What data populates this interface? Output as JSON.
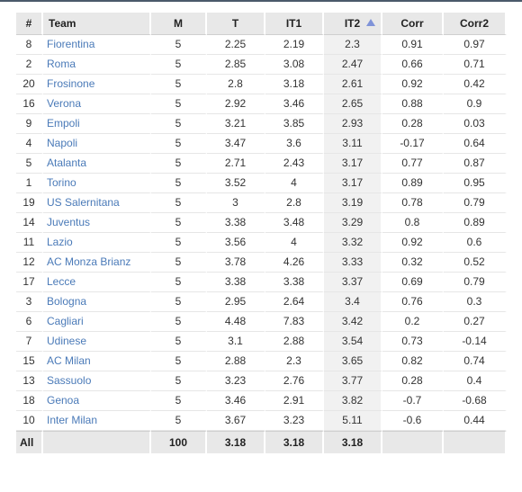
{
  "table": {
    "columns": [
      {
        "key": "rank",
        "label": "#"
      },
      {
        "key": "team",
        "label": "Team"
      },
      {
        "key": "m",
        "label": "M"
      },
      {
        "key": "t",
        "label": "T"
      },
      {
        "key": "it1",
        "label": "IT1"
      },
      {
        "key": "it2",
        "label": "IT2"
      },
      {
        "key": "corr",
        "label": "Corr"
      },
      {
        "key": "corr2",
        "label": "Corr2"
      }
    ],
    "sorted_column": "IT2",
    "sort_direction": "ascending",
    "sort_icon": "sort-ascending-icon",
    "rows": [
      {
        "rank": "8",
        "team": "Fiorentina",
        "m": "5",
        "t": "2.25",
        "it1": "2.19",
        "it2": "2.3",
        "corr": "0.91",
        "corr2": "0.97"
      },
      {
        "rank": "2",
        "team": "Roma",
        "m": "5",
        "t": "2.85",
        "it1": "3.08",
        "it2": "2.47",
        "corr": "0.66",
        "corr2": "0.71"
      },
      {
        "rank": "20",
        "team": "Frosinone",
        "m": "5",
        "t": "2.8",
        "it1": "3.18",
        "it2": "2.61",
        "corr": "0.92",
        "corr2": "0.42"
      },
      {
        "rank": "16",
        "team": "Verona",
        "m": "5",
        "t": "2.92",
        "it1": "3.46",
        "it2": "2.65",
        "corr": "0.88",
        "corr2": "0.9"
      },
      {
        "rank": "9",
        "team": "Empoli",
        "m": "5",
        "t": "3.21",
        "it1": "3.85",
        "it2": "2.93",
        "corr": "0.28",
        "corr2": "0.03"
      },
      {
        "rank": "4",
        "team": "Napoli",
        "m": "5",
        "t": "3.47",
        "it1": "3.6",
        "it2": "3.11",
        "corr": "-0.17",
        "corr2": "0.64"
      },
      {
        "rank": "5",
        "team": "Atalanta",
        "m": "5",
        "t": "2.71",
        "it1": "2.43",
        "it2": "3.17",
        "corr": "0.77",
        "corr2": "0.87"
      },
      {
        "rank": "1",
        "team": "Torino",
        "m": "5",
        "t": "3.52",
        "it1": "4",
        "it2": "3.17",
        "corr": "0.89",
        "corr2": "0.95"
      },
      {
        "rank": "19",
        "team": "US Salernitana",
        "m": "5",
        "t": "3",
        "it1": "2.8",
        "it2": "3.19",
        "corr": "0.78",
        "corr2": "0.79"
      },
      {
        "rank": "14",
        "team": "Juventus",
        "m": "5",
        "t": "3.38",
        "it1": "3.48",
        "it2": "3.29",
        "corr": "0.8",
        "corr2": "0.89"
      },
      {
        "rank": "11",
        "team": "Lazio",
        "m": "5",
        "t": "3.56",
        "it1": "4",
        "it2": "3.32",
        "corr": "0.92",
        "corr2": "0.6"
      },
      {
        "rank": "12",
        "team": "AC Monza Brianz",
        "m": "5",
        "t": "3.78",
        "it1": "4.26",
        "it2": "3.33",
        "corr": "0.32",
        "corr2": "0.52"
      },
      {
        "rank": "17",
        "team": "Lecce",
        "m": "5",
        "t": "3.38",
        "it1": "3.38",
        "it2": "3.37",
        "corr": "0.69",
        "corr2": "0.79"
      },
      {
        "rank": "3",
        "team": "Bologna",
        "m": "5",
        "t": "2.95",
        "it1": "2.64",
        "it2": "3.4",
        "corr": "0.76",
        "corr2": "0.3"
      },
      {
        "rank": "6",
        "team": "Cagliari",
        "m": "5",
        "t": "4.48",
        "it1": "7.83",
        "it2": "3.42",
        "corr": "0.2",
        "corr2": "0.27"
      },
      {
        "rank": "7",
        "team": "Udinese",
        "m": "5",
        "t": "3.1",
        "it1": "2.88",
        "it2": "3.54",
        "corr": "0.73",
        "corr2": "-0.14"
      },
      {
        "rank": "15",
        "team": "AC Milan",
        "m": "5",
        "t": "2.88",
        "it1": "2.3",
        "it2": "3.65",
        "corr": "0.82",
        "corr2": "0.74"
      },
      {
        "rank": "13",
        "team": "Sassuolo",
        "m": "5",
        "t": "3.23",
        "it1": "2.76",
        "it2": "3.77",
        "corr": "0.28",
        "corr2": "0.4"
      },
      {
        "rank": "18",
        "team": "Genoa",
        "m": "5",
        "t": "3.46",
        "it1": "2.91",
        "it2": "3.82",
        "corr": "-0.7",
        "corr2": "-0.68"
      },
      {
        "rank": "10",
        "team": "Inter Milan",
        "m": "5",
        "t": "3.67",
        "it1": "3.23",
        "it2": "5.11",
        "corr": "-0.6",
        "corr2": "0.44"
      }
    ],
    "footer": {
      "label": "All",
      "team": "",
      "m": "100",
      "t": "3.18",
      "it1": "3.18",
      "it2": "3.18",
      "corr": "",
      "corr2": ""
    }
  },
  "colors": {
    "link": "#4a7ab8",
    "header_bg": "#e8e8e8",
    "sort_icon": "#7f93d8",
    "sorted_column_bg": "#f1f1f1"
  }
}
